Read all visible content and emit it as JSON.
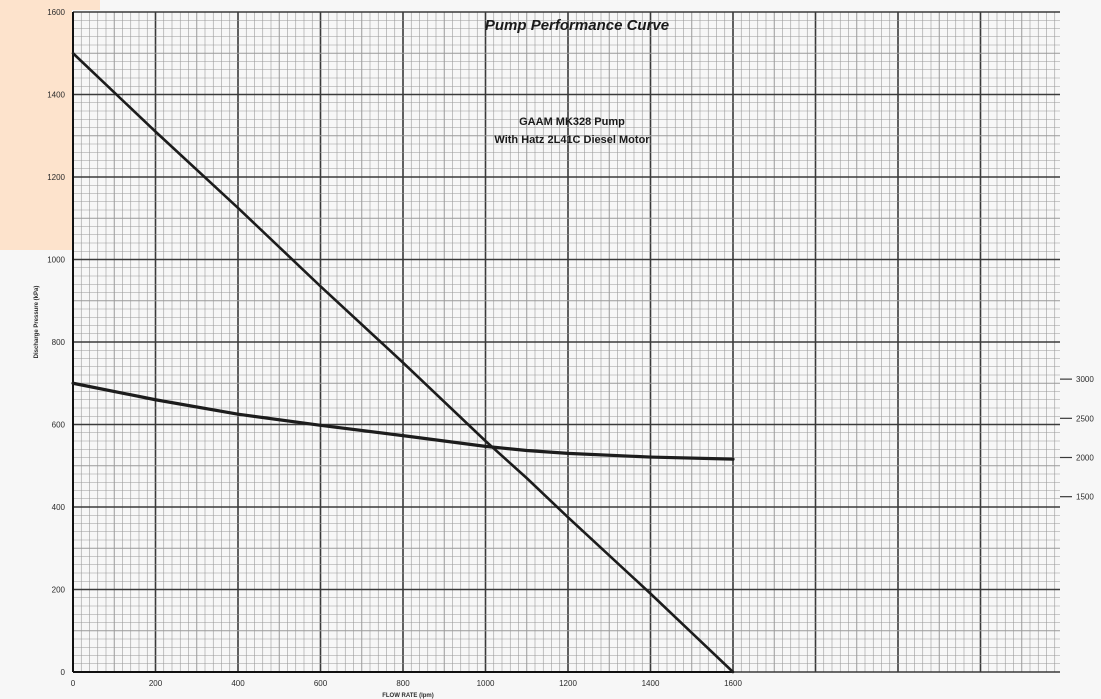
{
  "chart_data": {
    "type": "line",
    "title": "Pump Performance Curve",
    "subtitle_lines": [
      "GAAM MK328 Pump",
      "With Hatz 2L41C Diesel Motor"
    ],
    "xlabel": "FLOW RATE (lpm)",
    "ylabel": "Discharge Pressure (kPa)",
    "xlim": [
      0,
      1600
    ],
    "ylim": [
      0,
      1600
    ],
    "x_ticks": [
      0,
      200,
      400,
      600,
      800,
      1000,
      1200,
      1400,
      1600
    ],
    "y_ticks": [
      0,
      200,
      400,
      600,
      800,
      1000,
      1200,
      1400,
      1600
    ],
    "right_ticks": [
      {
        "label": "3000",
        "y": 710
      },
      {
        "label": "2500",
        "y": 615
      },
      {
        "label": "2000",
        "y": 520
      },
      {
        "label": "1500",
        "y": 425
      }
    ],
    "grid": true,
    "series": [
      {
        "x": [
          0,
          200,
          400,
          600,
          800,
          1000,
          1100,
          1200,
          1400,
          1600
        ],
        "y": [
          1500,
          1310,
          1125,
          935,
          750,
          560,
          470,
          375,
          190,
          0
        ]
      },
      {
        "x": [
          0,
          200,
          400,
          600,
          800,
          1000,
          1100,
          1200,
          1400,
          1600
        ],
        "y": [
          700,
          660,
          625,
          598,
          573,
          547,
          537,
          530,
          521,
          516
        ]
      }
    ],
    "colors": {
      "line": "#1c1c1c",
      "grid_major": "#3a3a3a",
      "grid_minor": "#9a9a9a",
      "background": "#f7f7f7",
      "corner_tint": "#fde3cc"
    }
  }
}
